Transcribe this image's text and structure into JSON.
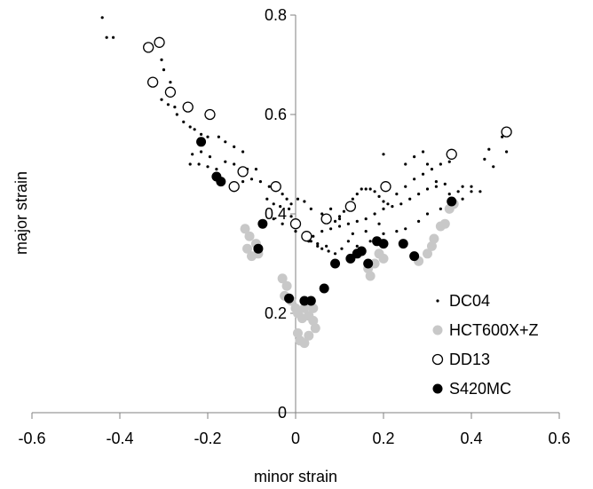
{
  "chart_data": {
    "type": "scatter",
    "title": "",
    "xlabel": "minor strain",
    "ylabel": "major strain",
    "xlim": [
      -0.6,
      0.6
    ],
    "ylim": [
      0,
      0.8
    ],
    "x_ticks": [
      "-0.6",
      "-0.4",
      "-0.2",
      "0",
      "0.2",
      "0.4",
      "0.6"
    ],
    "y_ticks": [
      "0",
      "0.2",
      "0.4",
      "0.6",
      "0.8"
    ],
    "grid": false,
    "legend_position": "lower-right",
    "series": [
      {
        "name": "DC04",
        "marker": "small-dot",
        "color": "#000000",
        "points": [
          [
            -0.44,
            0.795
          ],
          [
            -0.43,
            0.755
          ],
          [
            -0.415,
            0.755
          ],
          [
            -0.305,
            0.71
          ],
          [
            -0.3,
            0.69
          ],
          [
            -0.285,
            0.665
          ],
          [
            -0.305,
            0.63
          ],
          [
            -0.29,
            0.62
          ],
          [
            -0.275,
            0.615
          ],
          [
            -0.27,
            0.6
          ],
          [
            -0.255,
            0.585
          ],
          [
            -0.24,
            0.575
          ],
          [
            -0.23,
            0.57
          ],
          [
            -0.215,
            0.56
          ],
          [
            -0.2,
            0.555
          ],
          [
            -0.235,
            0.52
          ],
          [
            -0.215,
            0.525
          ],
          [
            -0.195,
            0.515
          ],
          [
            -0.175,
            0.555
          ],
          [
            -0.16,
            0.545
          ],
          [
            -0.14,
            0.535
          ],
          [
            -0.12,
            0.525
          ],
          [
            -0.24,
            0.5
          ],
          [
            -0.22,
            0.5
          ],
          [
            -0.2,
            0.495
          ],
          [
            -0.18,
            0.49
          ],
          [
            -0.16,
            0.505
          ],
          [
            -0.14,
            0.5
          ],
          [
            -0.125,
            0.48
          ],
          [
            -0.11,
            0.49
          ],
          [
            -0.09,
            0.49
          ],
          [
            -0.12,
            0.465
          ],
          [
            -0.1,
            0.47
          ],
          [
            -0.08,
            0.465
          ],
          [
            -0.06,
            0.455
          ],
          [
            -0.04,
            0.45
          ],
          [
            -0.03,
            0.44
          ],
          [
            -0.02,
            0.43
          ],
          [
            -0.01,
            0.42
          ],
          [
            -0.065,
            0.43
          ],
          [
            -0.05,
            0.42
          ],
          [
            -0.035,
            0.415
          ],
          [
            -0.015,
            0.41
          ],
          [
            0.005,
            0.43
          ],
          [
            0.02,
            0.425
          ],
          [
            0.035,
            0.41
          ],
          [
            -0.01,
            0.395
          ],
          [
            0.005,
            0.375
          ],
          [
            0.02,
            0.36
          ],
          [
            0.035,
            0.345
          ],
          [
            0.05,
            0.335
          ],
          [
            0.06,
            0.33
          ],
          [
            0.075,
            0.325
          ],
          [
            0.09,
            0.32
          ],
          [
            0.105,
            0.33
          ],
          [
            0.12,
            0.345
          ],
          [
            0.04,
            0.355
          ],
          [
            0.06,
            0.365
          ],
          [
            0.08,
            0.37
          ],
          [
            0.1,
            0.375
          ],
          [
            0.12,
            0.38
          ],
          [
            0.14,
            0.385
          ],
          [
            0.16,
            0.39
          ],
          [
            0.18,
            0.4
          ],
          [
            0.2,
            0.41
          ],
          [
            0.22,
            0.415
          ],
          [
            0.24,
            0.42
          ],
          [
            0.26,
            0.43
          ],
          [
            0.28,
            0.44
          ],
          [
            0.3,
            0.45
          ],
          [
            0.32,
            0.455
          ],
          [
            0.34,
            0.46
          ],
          [
            0.09,
            0.385
          ],
          [
            0.1,
            0.395
          ],
          [
            0.11,
            0.405
          ],
          [
            0.12,
            0.42
          ],
          [
            0.13,
            0.43
          ],
          [
            0.14,
            0.44
          ],
          [
            0.15,
            0.45
          ],
          [
            0.16,
            0.45
          ],
          [
            0.17,
            0.45
          ],
          [
            0.18,
            0.445
          ],
          [
            0.19,
            0.435
          ],
          [
            0.2,
            0.425
          ],
          [
            0.21,
            0.42
          ],
          [
            0.23,
            0.44
          ],
          [
            0.25,
            0.455
          ],
          [
            0.27,
            0.47
          ],
          [
            0.29,
            0.48
          ],
          [
            0.31,
            0.49
          ],
          [
            0.33,
            0.5
          ],
          [
            0.35,
            0.505
          ],
          [
            0.2,
            0.52
          ],
          [
            0.25,
            0.5
          ],
          [
            0.27,
            0.515
          ],
          [
            0.29,
            0.525
          ],
          [
            0.3,
            0.5
          ],
          [
            0.32,
            0.465
          ],
          [
            0.35,
            0.44
          ],
          [
            0.37,
            0.445
          ],
          [
            0.38,
            0.455
          ],
          [
            0.4,
            0.455
          ],
          [
            0.42,
            0.445
          ],
          [
            0.43,
            0.51
          ],
          [
            0.44,
            0.53
          ],
          [
            0.45,
            0.495
          ],
          [
            0.47,
            0.555
          ],
          [
            0.48,
            0.525
          ],
          [
            -0.05,
            0.39
          ],
          [
            -0.03,
            0.38
          ],
          [
            0.0,
            0.365
          ],
          [
            0.03,
            0.345
          ],
          [
            0.05,
            0.34
          ],
          [
            0.07,
            0.335
          ],
          [
            0.14,
            0.335
          ],
          [
            0.17,
            0.345
          ],
          [
            0.2,
            0.36
          ],
          [
            0.23,
            0.365
          ],
          [
            0.25,
            0.37
          ],
          [
            0.28,
            0.385
          ],
          [
            0.3,
            0.4
          ],
          [
            0.33,
            0.41
          ],
          [
            0.36,
            0.42
          ],
          [
            0.38,
            0.43
          ],
          [
            0.4,
            0.445
          ],
          [
            0.06,
            0.4
          ],
          [
            0.08,
            0.41
          ],
          [
            0.1,
            0.39
          ],
          [
            0.13,
            0.36
          ],
          [
            0.16,
            0.365
          ],
          [
            0.19,
            0.38
          ]
        ]
      },
      {
        "name": "HCT600X+Z",
        "marker": "filled-circle",
        "color": "#c8c8c8",
        "points": [
          [
            -0.115,
            0.37
          ],
          [
            -0.105,
            0.355
          ],
          [
            -0.11,
            0.33
          ],
          [
            -0.1,
            0.315
          ],
          [
            -0.09,
            0.34
          ],
          [
            -0.085,
            0.32
          ],
          [
            -0.03,
            0.27
          ],
          [
            -0.02,
            0.255
          ],
          [
            -0.025,
            0.235
          ],
          [
            -0.01,
            0.225
          ],
          [
            0.0,
            0.21
          ],
          [
            0.005,
            0.2
          ],
          [
            0.02,
            0.21
          ],
          [
            0.03,
            0.195
          ],
          [
            0.04,
            0.185
          ],
          [
            0.045,
            0.17
          ],
          [
            0.005,
            0.16
          ],
          [
            0.01,
            0.145
          ],
          [
            0.02,
            0.14
          ],
          [
            0.03,
            0.155
          ],
          [
            0.015,
            0.19
          ],
          [
            0.04,
            0.21
          ],
          [
            0.19,
            0.32
          ],
          [
            0.2,
            0.31
          ],
          [
            0.165,
            0.29
          ],
          [
            0.17,
            0.275
          ],
          [
            0.18,
            0.3
          ],
          [
            0.3,
            0.32
          ],
          [
            0.31,
            0.335
          ],
          [
            0.315,
            0.35
          ],
          [
            0.33,
            0.375
          ],
          [
            0.34,
            0.38
          ],
          [
            0.35,
            0.41
          ],
          [
            0.36,
            0.42
          ],
          [
            0.28,
            0.305
          ]
        ]
      },
      {
        "name": "DD13",
        "marker": "open-circle",
        "color": "#000000",
        "points": [
          [
            -0.335,
            0.735
          ],
          [
            -0.31,
            0.745
          ],
          [
            -0.325,
            0.665
          ],
          [
            -0.285,
            0.645
          ],
          [
            -0.245,
            0.615
          ],
          [
            -0.195,
            0.6
          ],
          [
            -0.12,
            0.485
          ],
          [
            -0.14,
            0.455
          ],
          [
            -0.045,
            0.455
          ],
          [
            0.0,
            0.38
          ],
          [
            0.025,
            0.355
          ],
          [
            0.07,
            0.39
          ],
          [
            0.125,
            0.415
          ],
          [
            0.205,
            0.455
          ],
          [
            0.355,
            0.52
          ],
          [
            0.48,
            0.565
          ]
        ]
      },
      {
        "name": "S420MC",
        "marker": "filled-circle",
        "color": "#000000",
        "points": [
          [
            -0.215,
            0.545
          ],
          [
            -0.18,
            0.475
          ],
          [
            -0.17,
            0.465
          ],
          [
            -0.075,
            0.38
          ],
          [
            -0.085,
            0.33
          ],
          [
            -0.015,
            0.23
          ],
          [
            0.02,
            0.225
          ],
          [
            0.035,
            0.225
          ],
          [
            0.065,
            0.25
          ],
          [
            0.09,
            0.3
          ],
          [
            0.125,
            0.31
          ],
          [
            0.14,
            0.32
          ],
          [
            0.15,
            0.325
          ],
          [
            0.165,
            0.3
          ],
          [
            0.185,
            0.345
          ],
          [
            0.2,
            0.34
          ],
          [
            0.245,
            0.34
          ],
          [
            0.27,
            0.315
          ],
          [
            0.355,
            0.425
          ]
        ]
      }
    ]
  }
}
